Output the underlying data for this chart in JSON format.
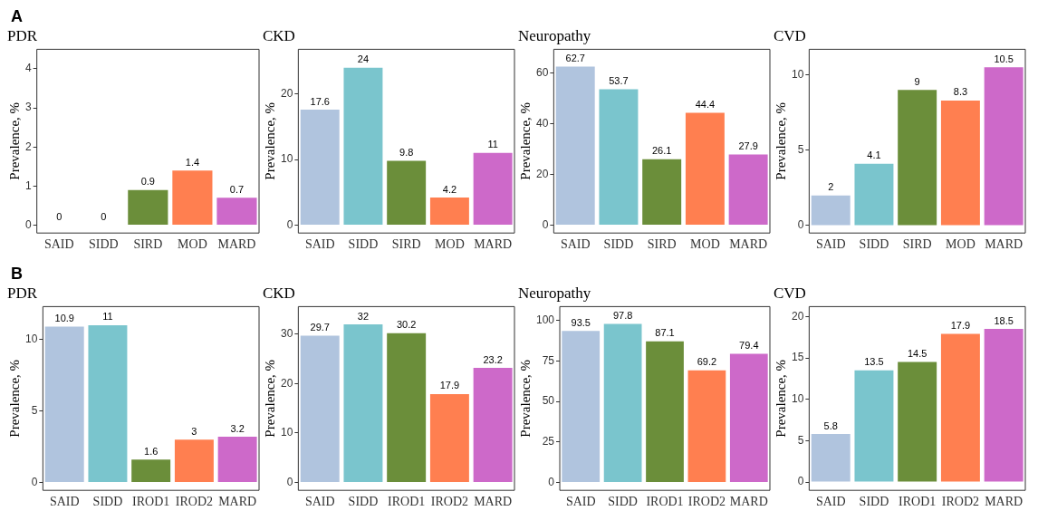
{
  "chart_data": [
    {
      "type": "bar",
      "title": "PDR",
      "annotations": [
        "A"
      ],
      "categories": [
        "SAID",
        "SIDD",
        "SIRD",
        "MOD",
        "MARD"
      ],
      "values": [
        0,
        0,
        0.9,
        1.4,
        0.7
      ],
      "colors": [
        "#b0c4de",
        "#7ac5cd",
        "#6b8e3a",
        "#ff7f50",
        "#cd69c9"
      ],
      "ylabel": "Prevalence, %",
      "ylim": [
        -0.2,
        4.5
      ],
      "yticks": [
        0,
        1,
        2,
        3,
        4
      ],
      "data_labels": true,
      "grid": false
    },
    {
      "type": "bar",
      "title": "CKD",
      "categories": [
        "SAID",
        "SIDD",
        "SIRD",
        "MOD",
        "MARD"
      ],
      "values": [
        17.6,
        24,
        9.8,
        4.2,
        11
      ],
      "colors": [
        "#b0c4de",
        "#7ac5cd",
        "#6b8e3a",
        "#ff7f50",
        "#cd69c9"
      ],
      "ylabel": "Prevalence, %",
      "ylim": [
        -1.2,
        26.8
      ],
      "yticks": [
        0,
        10,
        20
      ],
      "data_labels": true,
      "grid": false
    },
    {
      "type": "bar",
      "title": "Neuropathy",
      "categories": [
        "SAID",
        "SIDD",
        "SIRD",
        "MOD",
        "MARD"
      ],
      "values": [
        62.7,
        53.7,
        26.1,
        44.4,
        27.9
      ],
      "colors": [
        "#b0c4de",
        "#7ac5cd",
        "#6b8e3a",
        "#ff7f50",
        "#cd69c9"
      ],
      "ylabel": "Prevalence, %",
      "ylim": [
        -3.1,
        69.5
      ],
      "yticks": [
        0,
        20,
        40,
        60
      ],
      "data_labels": true,
      "grid": false
    },
    {
      "type": "bar",
      "title": "CVD",
      "categories": [
        "SAID",
        "SIDD",
        "SIRD",
        "MOD",
        "MARD"
      ],
      "values": [
        2,
        4.1,
        9,
        8.3,
        10.5
      ],
      "colors": [
        "#b0c4de",
        "#7ac5cd",
        "#6b8e3a",
        "#ff7f50",
        "#cd69c9"
      ],
      "ylabel": "Prevalence, %",
      "ylim": [
        -0.5,
        11.7
      ],
      "yticks": [
        0,
        5,
        10
      ],
      "data_labels": true,
      "grid": false
    },
    {
      "type": "bar",
      "title": "PDR",
      "annotations": [
        "B"
      ],
      "categories": [
        "SAID",
        "SIDD",
        "IROD1",
        "IROD2",
        "MARD"
      ],
      "values": [
        10.9,
        11,
        1.6,
        3,
        3.2
      ],
      "colors": [
        "#b0c4de",
        "#7ac5cd",
        "#6b8e3a",
        "#ff7f50",
        "#cd69c9"
      ],
      "ylabel": "Prevalence, %",
      "ylim": [
        -0.55,
        12.3
      ],
      "yticks": [
        0,
        5,
        10
      ],
      "data_labels": true,
      "grid": false
    },
    {
      "type": "bar",
      "title": "CKD",
      "categories": [
        "SAID",
        "SIDD",
        "IROD1",
        "IROD2",
        "MARD"
      ],
      "values": [
        29.7,
        32,
        30.2,
        17.9,
        23.2
      ],
      "colors": [
        "#b0c4de",
        "#7ac5cd",
        "#6b8e3a",
        "#ff7f50",
        "#cd69c9"
      ],
      "ylabel": "Prevalence, %",
      "ylim": [
        -1.6,
        35.6
      ],
      "yticks": [
        0,
        10,
        20,
        30
      ],
      "data_labels": true,
      "grid": false
    },
    {
      "type": "bar",
      "title": "Neuropathy",
      "categories": [
        "SAID",
        "SIDD",
        "IROD1",
        "IROD2",
        "MARD"
      ],
      "values": [
        93.5,
        97.8,
        87.1,
        69.2,
        79.4
      ],
      "colors": [
        "#b0c4de",
        "#7ac5cd",
        "#6b8e3a",
        "#ff7f50",
        "#cd69c9"
      ],
      "ylabel": "Prevalence, %",
      "ylim": [
        -4.9,
        108.5
      ],
      "yticks": [
        0,
        25,
        50,
        75,
        100
      ],
      "data_labels": true,
      "grid": false
    },
    {
      "type": "bar",
      "title": "CVD",
      "categories": [
        "SAID",
        "SIDD",
        "IROD1",
        "IROD2",
        "MARD"
      ],
      "values": [
        5.8,
        13.5,
        14.5,
        17.9,
        18.5
      ],
      "colors": [
        "#b0c4de",
        "#7ac5cd",
        "#6b8e3a",
        "#ff7f50",
        "#cd69c9"
      ],
      "ylabel": "Prevalence, %",
      "ylim": [
        -1,
        21.2
      ],
      "yticks": [
        0,
        5,
        10,
        15,
        20
      ],
      "data_labels": true,
      "grid": false
    }
  ]
}
